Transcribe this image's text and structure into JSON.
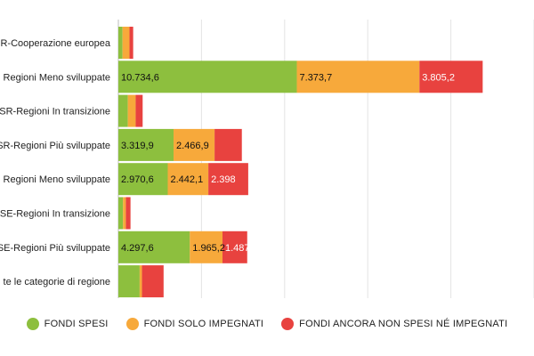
{
  "chart_data": {
    "type": "bar",
    "orientation": "horizontal",
    "stacked": true,
    "grid": true,
    "legend_position": "bottom",
    "xlim": [
      0,
      25000
    ],
    "categories": [
      "R-Cooperazione europea",
      "Regioni Meno sviluppate",
      "SR-Regioni In transizione",
      "SR-Regioni Più sviluppate",
      "Regioni Meno sviluppate",
      "SE-Regioni In transizione",
      "SE-Regioni Più sviluppate",
      "te le categorie di regione"
    ],
    "series": [
      {
        "name": "FONDI SPESI",
        "color": "#8dbf3e",
        "values": [
          250,
          10734.6,
          570,
          3319.9,
          2970.6,
          280,
          4297.6,
          1280
        ],
        "labels": [
          "",
          "10.734,6",
          "",
          "3.319,9",
          "2.970,6",
          "",
          "4.297,6",
          ""
        ]
      },
      {
        "name": "FONDI SOLO IMPEGNATI",
        "color": "#f7a93b",
        "values": [
          420,
          7373.7,
          470,
          2466.9,
          2442.1,
          170,
          1965.2,
          140
        ]
      },
      {
        "name": "FONDI ANCORA NON SPESI NÉ IMPEGNATI",
        "color": "#e8423f",
        "values": [
          220,
          3805.2,
          420,
          1640,
          2398,
          280,
          1487,
          1300
        ],
        "labels": [
          "",
          "3.805,2",
          "",
          "",
          "2.398",
          "",
          "1.487",
          ""
        ]
      }
    ],
    "series_labels": {
      "1": [
        "",
        "7.373,7",
        "",
        "2.466,9",
        "2.442,1",
        "",
        "1.965,2",
        ""
      ]
    }
  }
}
